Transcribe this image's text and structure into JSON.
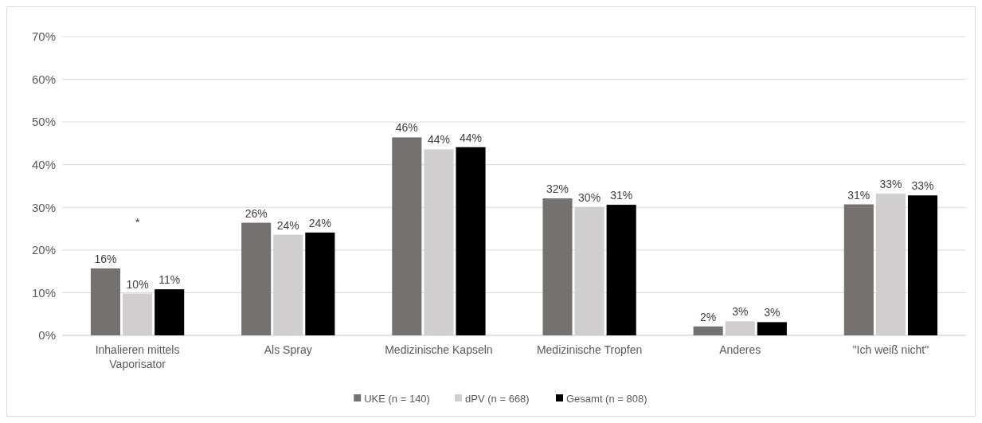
{
  "chart_data": {
    "type": "bar",
    "categories": [
      "Inhalieren mittels Vaporisator",
      "Als Spray",
      "Medizinische Kapseln",
      "Medizinische Tropfen",
      "Anderes",
      "\"Ich weiß nicht\""
    ],
    "series": [
      {
        "name": "UKE (n = 140)",
        "color": "#767171",
        "values": [
          15.7,
          26.4,
          46.4,
          32.1,
          2.1,
          30.7
        ],
        "value_labels": [
          "16%",
          "26%",
          "46%",
          "32%",
          "2%",
          "31%"
        ]
      },
      {
        "name": "dPV (n = 668)",
        "color": "#d0cece",
        "values": [
          9.8,
          23.6,
          43.6,
          30.1,
          3.3,
          33.2
        ],
        "value_labels": [
          "10%",
          "24%",
          "44%",
          "30%",
          "3%",
          "33%"
        ]
      },
      {
        "name": "Gesamt (n = 808)",
        "color": "#000000",
        "values": [
          10.8,
          24.1,
          44.1,
          30.6,
          3.1,
          32.8
        ],
        "value_labels": [
          "11%",
          "24%",
          "44%",
          "31%",
          "3%",
          "33%"
        ]
      }
    ],
    "ylim": [
      0,
      70
    ],
    "yticks": [
      {
        "value": 0,
        "label": "0%"
      },
      {
        "value": 10,
        "label": "10%"
      },
      {
        "value": 20,
        "label": "20%"
      },
      {
        "value": 30,
        "label": "30%"
      },
      {
        "value": 40,
        "label": "40%"
      },
      {
        "value": 50,
        "label": "50%"
      },
      {
        "value": 60,
        "label": "60%"
      },
      {
        "value": 70,
        "label": "70%"
      }
    ],
    "grid": "y",
    "legend": "bottom",
    "annotations": [
      "*"
    ]
  }
}
